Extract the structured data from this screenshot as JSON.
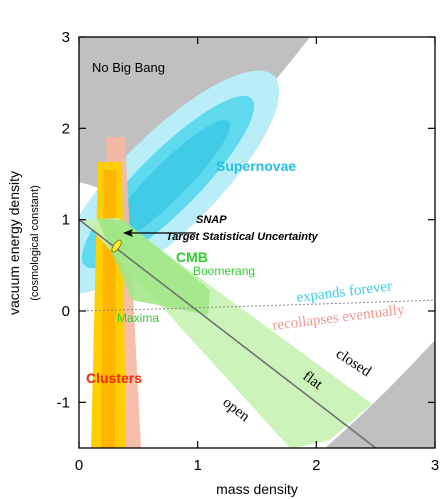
{
  "chart_data": {
    "type": "area",
    "xlabel": "mass density",
    "ylabel": "vacuum energy density",
    "ylabel_sub": "(cosmological constant)",
    "xlim": [
      0,
      3
    ],
    "ylim": [
      -1.5,
      3
    ],
    "x_ticks": [
      {
        "value": 0,
        "label": "0"
      },
      {
        "value": 1,
        "label": "1"
      },
      {
        "value": 2,
        "label": "2"
      },
      {
        "value": 3,
        "label": "3"
      }
    ],
    "y_ticks": [
      {
        "value": -1,
        "label": "-1"
      },
      {
        "value": 0,
        "label": "0"
      },
      {
        "value": 1,
        "label": "1"
      },
      {
        "value": 2,
        "label": "2"
      },
      {
        "value": 3,
        "label": "3"
      }
    ],
    "grid": false,
    "regions": {
      "no_big_bang": "No Big Bang",
      "supernovae": "Supernovae",
      "snap_line1": "SNAP",
      "snap_line2": "Target Statistical Uncertainty",
      "cmb": "CMB",
      "boomerang": "Boomerang",
      "maxima": "Maxima",
      "clusters": "Clusters"
    },
    "annotations": {
      "expands_forever": "expands forever",
      "recollapses": "recollapses eventually",
      "closed": "closed",
      "flat": "flat",
      "open": "open"
    },
    "flat_line": {
      "x": [
        0,
        2.5
      ],
      "y": [
        1,
        -1.5
      ]
    },
    "snap_point": {
      "x": 0.3,
      "y": 0.7
    },
    "colors": {
      "grey": "#c0c0c0",
      "supernova_outer": "#b9eef8",
      "supernova_mid": "#5fd9ee",
      "supernova_inner": "#2bc2e2",
      "cmb_outer": "#c6f2b2",
      "cmb_inner": "#9ee684",
      "clusters_outer": "#f6b8a2",
      "clusters_mid": "#ffcf00",
      "clusters_inner": "#ff9f00",
      "snap": "#ffee33",
      "supernova_text": "#27bfe0",
      "cmb_text": "#33cc33",
      "clusters_text": "#ee2a00",
      "expands_text": "#3ad0ea",
      "recollapse_text": "#ef9a8e"
    }
  }
}
